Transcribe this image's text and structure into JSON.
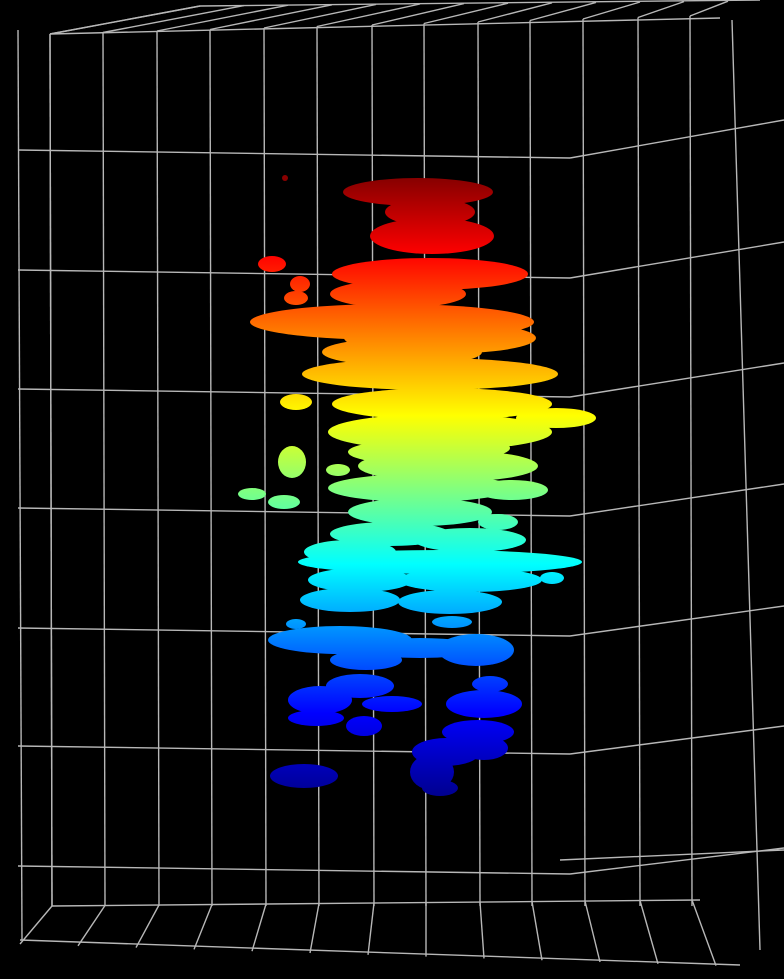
{
  "scene": {
    "background_color": "#000000",
    "grid_color": "#d8d8d8",
    "colormap": "jet",
    "colormap_stops": [
      "#00007f",
      "#0000ff",
      "#007fff",
      "#00ffff",
      "#7fff7f",
      "#ffff00",
      "#ff7f00",
      "#ff0000",
      "#7f0000"
    ],
    "grid_on": true,
    "view": "3d-perspective-wireframe-box"
  }
}
